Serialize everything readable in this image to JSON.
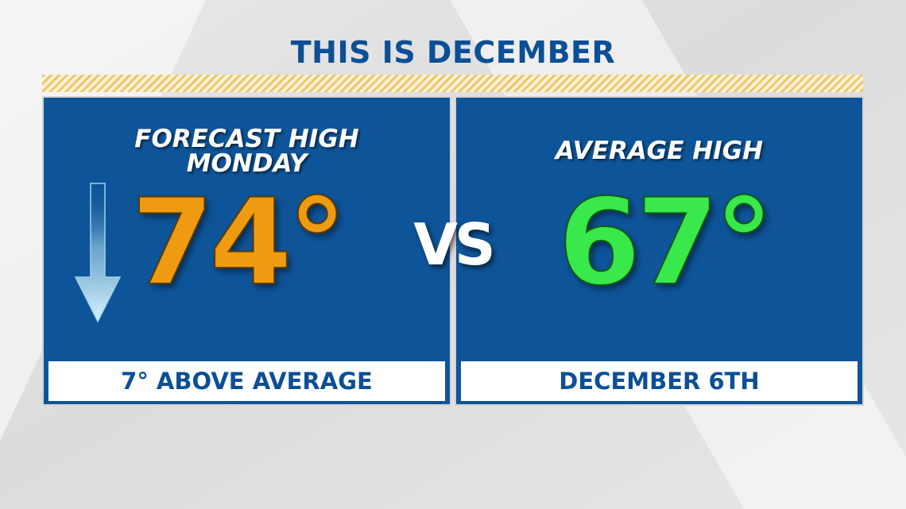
{
  "title": "THIS IS DECEMBER",
  "left_panel": {
    "subtitle_line1": "FORECAST HIGH",
    "subtitle_line2": "MONDAY",
    "value": "74°",
    "footer": "7° ABOVE AVERAGE",
    "value_color": "#ef9b12",
    "icon": "down-arrow-icon"
  },
  "vs": "VS",
  "right_panel": {
    "subtitle": "AVERAGE HIGH",
    "value": "67°",
    "footer": "DECEMBER 6TH",
    "value_color": "#39e84a"
  },
  "colors": {
    "panel_blue": "#0e5499",
    "title_blue": "#0b4f96",
    "accent_gold": "#f0c66c"
  }
}
